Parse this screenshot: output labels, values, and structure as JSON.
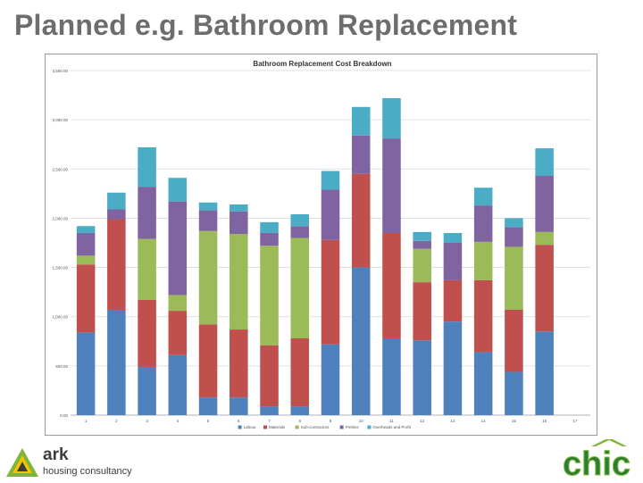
{
  "slide": {
    "title": "Planned e.g. Bathroom Replacement"
  },
  "logos": {
    "left_name": "ark",
    "left_sub": "housing consultancy",
    "right_name": "chic"
  },
  "colors": {
    "Labour": "#4f81bd",
    "Materials": "#c0504d",
    "Sub-contractors": "#9bbb59",
    "Prelims": "#8064a2",
    "Overheads and Profit": "#4bacc6"
  },
  "chart_data": {
    "type": "bar",
    "stacked": true,
    "title": "Bathroom   Replacement Cost Breakdown",
    "categories": [
      "1",
      "2",
      "3",
      "4",
      "5",
      "6",
      "7",
      "8",
      "9",
      "10",
      "11",
      "12",
      "13",
      "14",
      "15",
      "16",
      "17"
    ],
    "ylim": [
      0,
      3500
    ],
    "yticks": [
      "0.00",
      "500.00",
      "1,000.00",
      "1,500.00",
      "2,000.00",
      "2,500.00",
      "3,000.00",
      "3,500.00"
    ],
    "legend_position": "bottom",
    "grid": true,
    "series": [
      {
        "name": "Labour",
        "values": [
          840,
          1070,
          490,
          610,
          180,
          180,
          90,
          90,
          720,
          1500,
          780,
          760,
          950,
          640,
          440,
          850,
          0
        ]
      },
      {
        "name": "Materials",
        "values": [
          690,
          920,
          680,
          450,
          740,
          690,
          620,
          690,
          1060,
          950,
          1070,
          590,
          420,
          730,
          630,
          880,
          0
        ]
      },
      {
        "name": "Sub-contractors",
        "values": [
          90,
          0,
          620,
          160,
          950,
          970,
          1010,
          1020,
          0,
          0,
          0,
          340,
          0,
          390,
          640,
          130,
          0
        ]
      },
      {
        "name": "Prelims",
        "values": [
          230,
          100,
          530,
          950,
          210,
          230,
          130,
          120,
          510,
          390,
          960,
          80,
          380,
          370,
          200,
          570,
          0
        ]
      },
      {
        "name": "Overheads and Profit",
        "values": [
          70,
          170,
          400,
          240,
          80,
          70,
          110,
          120,
          190,
          290,
          410,
          90,
          100,
          180,
          90,
          280,
          0
        ]
      }
    ]
  }
}
